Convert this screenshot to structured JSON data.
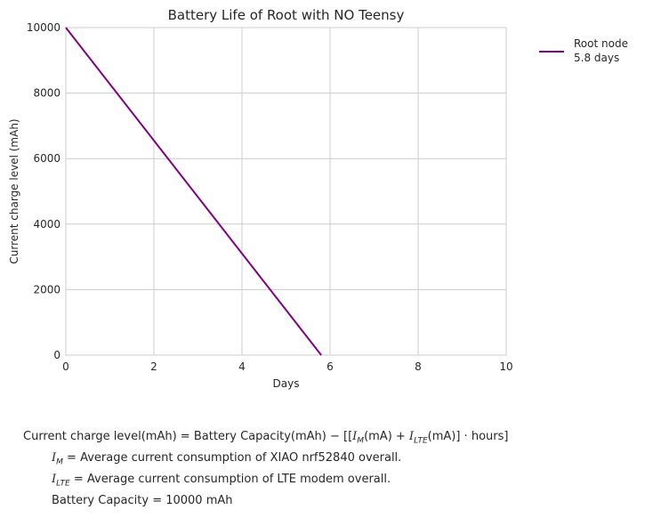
{
  "chart_data": {
    "type": "line",
    "title": "Battery Life of Root with NO Teensy",
    "xlabel": "Days",
    "ylabel": "Current charge level (mAh)",
    "xlim": [
      0,
      10
    ],
    "ylim": [
      0,
      10000
    ],
    "xticks": [
      0,
      2,
      4,
      6,
      8,
      10
    ],
    "yticks": [
      0,
      2000,
      4000,
      6000,
      8000,
      10000
    ],
    "grid": true,
    "legend_position": "outside-top-right",
    "series": [
      {
        "name": "Root node",
        "name_line2": "5.8 days",
        "color": "#800080",
        "x": [
          0,
          5.8
        ],
        "y": [
          10000,
          0
        ]
      }
    ]
  },
  "formulas": {
    "main": {
      "lhs": "Current charge level(mAh)",
      "eq": " = ",
      "capacity": "Battery Capacity(mAh)",
      "minus": " − [[",
      "im": "I",
      "im_sub": "M",
      "im_unit": "(mA) + ",
      "ilte": "I",
      "ilte_sub": "LTE",
      "ilte_unit": "(mA)] · hours]"
    },
    "im_def": {
      "sym": "I",
      "sub": "M",
      "text": " = Average current consumption of XIAO nrf52840 overall."
    },
    "ilte_def": {
      "sym": "I",
      "sub": "LTE",
      "text": " = Average current consumption of LTE modem overall."
    },
    "capacity_def": {
      "text": "Battery Capacity = 10000 mAh"
    }
  }
}
